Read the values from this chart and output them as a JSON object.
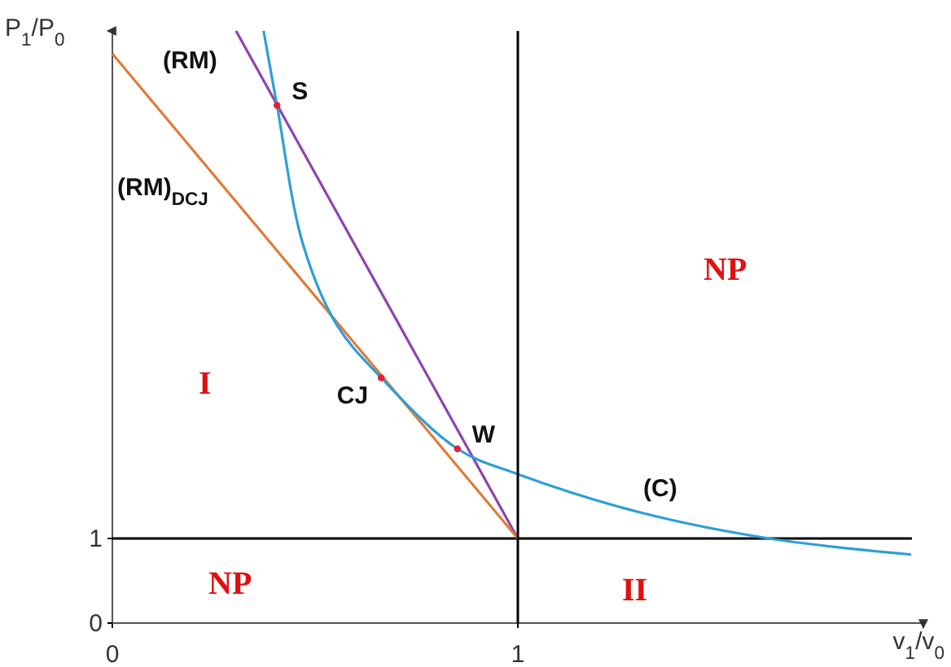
{
  "chart_data": {
    "type": "line",
    "xlabel": "v$_{1}$/v$_{0}$",
    "ylabel": "P$_{1}$/P$_{0}$",
    "xlim": [
      0,
      2
    ],
    "ylim": [
      0,
      7
    ],
    "xticks": [
      0,
      1
    ],
    "yticks": [
      0,
      1
    ],
    "grid": false,
    "marker": "none",
    "series": [
      {
        "name": "(RM)",
        "color": "#8e44ad",
        "x": [
          0.305,
          1
        ],
        "values": [
          7.0,
          1
        ]
      },
      {
        "name": "(RM)$_{DCJ}$",
        "color": "#e07b39",
        "x": [
          0,
          1
        ],
        "values": [
          6.73,
          1
        ]
      },
      {
        "name": "(C)",
        "color": "#2e9fd6",
        "x": [
          0.373,
          0.406,
          0.47,
          0.554,
          0.663,
          0.851,
          1,
          1.3,
          1.62,
          1.97
        ],
        "values": [
          7.0,
          6.12,
          4.48,
          3.52,
          2.9,
          2.06,
          1.76,
          1.31,
          1.0,
          0.81
        ]
      },
      {
        "type": "scatter",
        "color": "#e0203a",
        "marker": "circle",
        "x": [
          0.406,
          0.663,
          0.851
        ],
        "values": [
          6.12,
          2.9,
          2.06
        ]
      }
    ],
    "ref_lines": [
      {
        "axis": "x",
        "value": 1,
        "color": "#000000"
      },
      {
        "axis": "y",
        "value": 1,
        "color": "#000000"
      }
    ],
    "annotations": [
      {
        "text": "S",
        "x": 0.406,
        "y": 6.12
      },
      {
        "text": "CJ",
        "x": 0.663,
        "y": 2.9
      },
      {
        "text": "W",
        "x": 0.851,
        "y": 2.06
      },
      "I",
      "NP",
      "NP",
      "II"
    ]
  }
}
